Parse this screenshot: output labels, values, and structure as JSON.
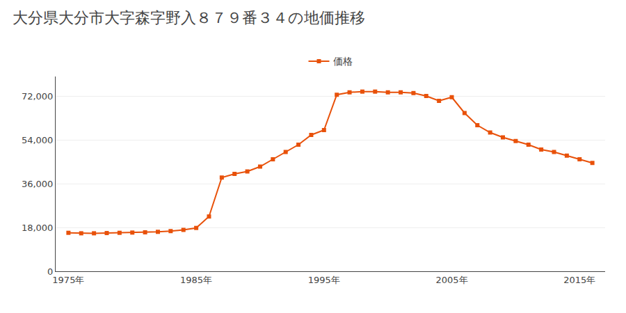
{
  "chart_data": {
    "type": "line",
    "title": "大分県大分市大字森字野入８７９番３４の地価推移",
    "x": [
      1975,
      1976,
      1977,
      1978,
      1979,
      1980,
      1981,
      1982,
      1983,
      1984,
      1985,
      1986,
      1987,
      1988,
      1989,
      1990,
      1991,
      1992,
      1993,
      1994,
      1995,
      1996,
      1997,
      1998,
      1999,
      2000,
      2001,
      2002,
      2003,
      2004,
      2005,
      2006,
      2007,
      2008,
      2009,
      2010,
      2011,
      2012,
      2013,
      2014,
      2015,
      2016
    ],
    "series": [
      {
        "name": "価格",
        "color": "#e8510a",
        "marker": "square",
        "values": [
          15800,
          15600,
          15600,
          15700,
          15800,
          15900,
          16000,
          16200,
          16500,
          17000,
          17800,
          22500,
          38500,
          40000,
          41000,
          43000,
          46000,
          49000,
          52000,
          56000,
          58000,
          72500,
          73500,
          73800,
          73800,
          73500,
          73500,
          73200,
          72000,
          70000,
          71500,
          65000,
          60000,
          57000,
          55000,
          53500,
          52000,
          50000,
          49000,
          47500,
          46000,
          44500
        ]
      }
    ],
    "xlim": [
      1974,
      2017
    ],
    "xticks": [
      {
        "value": 1975,
        "label": "1975年"
      },
      {
        "value": 1985,
        "label": "1985年"
      },
      {
        "value": 1995,
        "label": "1995年"
      },
      {
        "value": 2005,
        "label": "2005年"
      },
      {
        "value": 2015,
        "label": "2015年"
      }
    ],
    "ylim": [
      0,
      80000
    ],
    "yticks": [
      0,
      {
        "value": 18000,
        "label": "18,000"
      },
      {
        "value": 36000,
        "label": "36,000"
      },
      {
        "value": 54000,
        "label": "54,000"
      },
      {
        "value": 72000,
        "label": "72,000"
      }
    ],
    "grid": "y",
    "legend": "top"
  }
}
